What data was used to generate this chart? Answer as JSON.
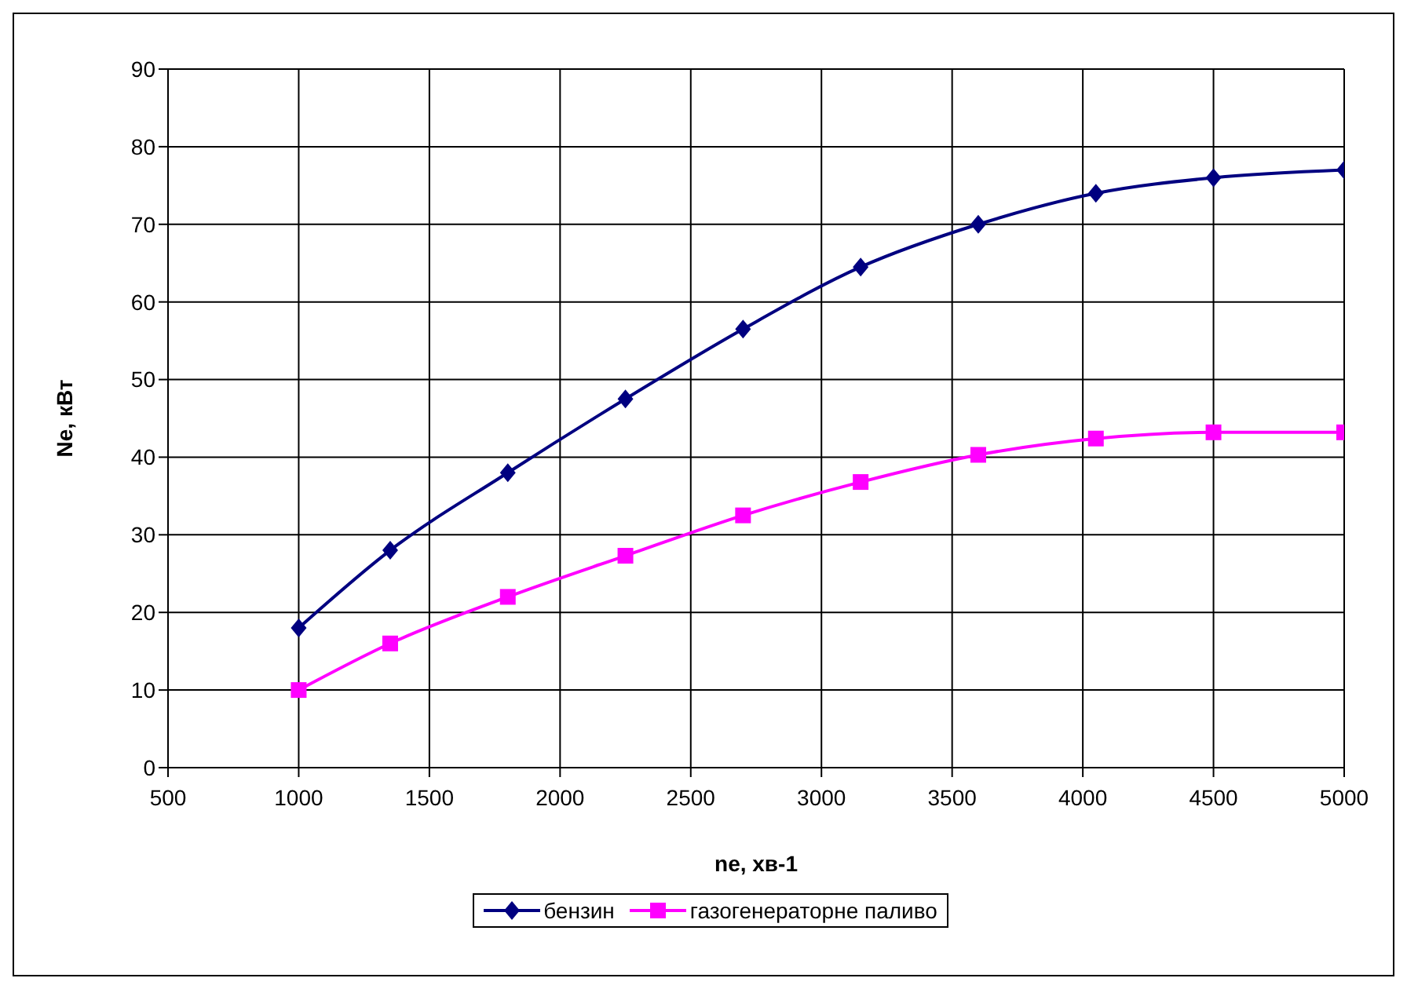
{
  "chart_data": {
    "type": "line",
    "xlabel": "ne, хв-1",
    "ylabel": "Ne, кВт",
    "x": [
      1000,
      1350,
      1800,
      2250,
      2700,
      3150,
      3600,
      4050,
      4500,
      5000
    ],
    "series": [
      {
        "name": "бензин",
        "color": "#000080",
        "marker": "diamond",
        "values": [
          18,
          28,
          38,
          47.5,
          56.5,
          64.5,
          70,
          74,
          76,
          77
        ]
      },
      {
        "name": "газогенераторне паливо",
        "color": "#ff00ff",
        "marker": "square",
        "values": [
          10,
          16,
          22,
          27.3,
          32.5,
          36.8,
          40.3,
          42.4,
          43.2,
          43.2
        ]
      }
    ],
    "xlim": [
      500,
      5000
    ],
    "xticks": [
      500,
      1000,
      1500,
      2000,
      2500,
      3000,
      3500,
      4000,
      4500,
      5000
    ],
    "ylim": [
      0,
      90
    ],
    "yticks": [
      0,
      10,
      20,
      30,
      40,
      50,
      60,
      70,
      80,
      90
    ],
    "grid": true,
    "legend": "bottom",
    "line_style": "solid"
  }
}
